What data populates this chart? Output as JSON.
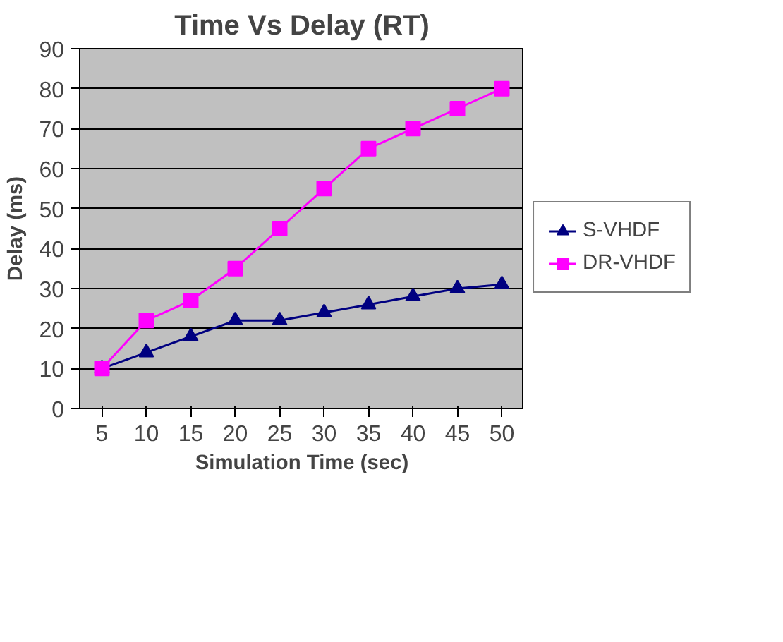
{
  "chart_data": {
    "type": "line",
    "title": "Time Vs Delay (RT)",
    "xlabel": "Simulation Time (sec)",
    "ylabel": "Delay (ms)",
    "categories": [
      "5",
      "10",
      "15",
      "20",
      "25",
      "30",
      "35",
      "40",
      "45",
      "50"
    ],
    "series": [
      {
        "name": "S-VHDF",
        "color": "#000080",
        "marker": "triangle",
        "values": [
          10,
          14,
          18,
          22,
          22,
          24,
          26,
          28,
          30,
          31
        ]
      },
      {
        "name": "DR-VHDF",
        "color": "#ff00ff",
        "marker": "square",
        "values": [
          10,
          22,
          27,
          35,
          45,
          55,
          65,
          70,
          75,
          80
        ]
      }
    ],
    "ylim": [
      0,
      90
    ],
    "yticks": [
      0,
      10,
      20,
      30,
      40,
      50,
      60,
      70,
      80,
      90
    ],
    "grid": "y",
    "legend": "right"
  }
}
